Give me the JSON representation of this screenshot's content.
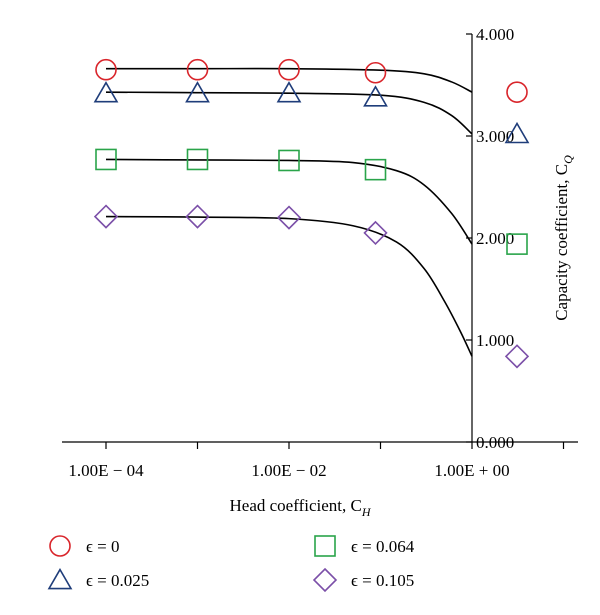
{
  "chart_data": {
    "type": "scatter",
    "title": "",
    "xlabel": "Head coefficient, C",
    "xlabel_sub": "H",
    "ylabel": "Capacity coefficient, C",
    "ylabel_sub": "Q",
    "x_scale": "log",
    "xlim": [
      2e-05,
      12
    ],
    "ylim": [
      0,
      4
    ],
    "x_ticks": [
      0.0001,
      0.01,
      1
    ],
    "x_tick_labels": [
      "1.00E − 04",
      "1.00E − 02",
      "1.00E + 00"
    ],
    "y_ticks": [
      0,
      1,
      2,
      3,
      4
    ],
    "y_tick_labels": [
      "0.000",
      "1.000",
      "2.000",
      "3.000",
      "4.000"
    ],
    "grid": false,
    "legend_position": "bottom",
    "x": [
      0.0001,
      0.001,
      0.01,
      0.1,
      1
    ],
    "series": [
      {
        "name": "ϵ = 0",
        "marker": "circle",
        "color": "#d9252b",
        "values": [
          3.65,
          3.65,
          3.65,
          3.62,
          3.43
        ],
        "fit_curve": [
          [
            0.0001,
            3.66
          ],
          [
            0.001,
            3.66
          ],
          [
            0.01,
            3.66
          ],
          [
            0.1,
            3.645
          ],
          [
            0.3,
            3.61
          ],
          [
            0.6,
            3.53
          ],
          [
            1,
            3.43
          ]
        ]
      },
      {
        "name": "ϵ = 0.025",
        "marker": "triangle",
        "color": "#1f3d7a",
        "values": [
          3.42,
          3.42,
          3.42,
          3.38,
          3.02
        ],
        "fit_curve": [
          [
            0.0001,
            3.43
          ],
          [
            0.001,
            3.425
          ],
          [
            0.01,
            3.42
          ],
          [
            0.1,
            3.4
          ],
          [
            0.3,
            3.33
          ],
          [
            0.6,
            3.2
          ],
          [
            1,
            3.02
          ]
        ]
      },
      {
        "name": "ϵ = 0.064",
        "marker": "square",
        "color": "#2aa44a",
        "values": [
          2.77,
          2.77,
          2.76,
          2.67,
          1.94
        ],
        "fit_curve": [
          [
            0.0001,
            2.77
          ],
          [
            0.001,
            2.765
          ],
          [
            0.01,
            2.76
          ],
          [
            0.05,
            2.74
          ],
          [
            0.15,
            2.66
          ],
          [
            0.3,
            2.52
          ],
          [
            0.6,
            2.24
          ],
          [
            1,
            1.94
          ]
        ]
      },
      {
        "name": "ϵ = 0.105",
        "marker": "diamond",
        "color": "#7b4fa8",
        "values": [
          2.21,
          2.21,
          2.2,
          2.05,
          0.84
        ],
        "fit_curve": [
          [
            0.0001,
            2.21
          ],
          [
            0.001,
            2.205
          ],
          [
            0.01,
            2.19
          ],
          [
            0.05,
            2.12
          ],
          [
            0.15,
            1.96
          ],
          [
            0.3,
            1.7
          ],
          [
            0.5,
            1.38
          ],
          [
            0.75,
            1.08
          ],
          [
            1,
            0.84
          ]
        ]
      }
    ]
  }
}
